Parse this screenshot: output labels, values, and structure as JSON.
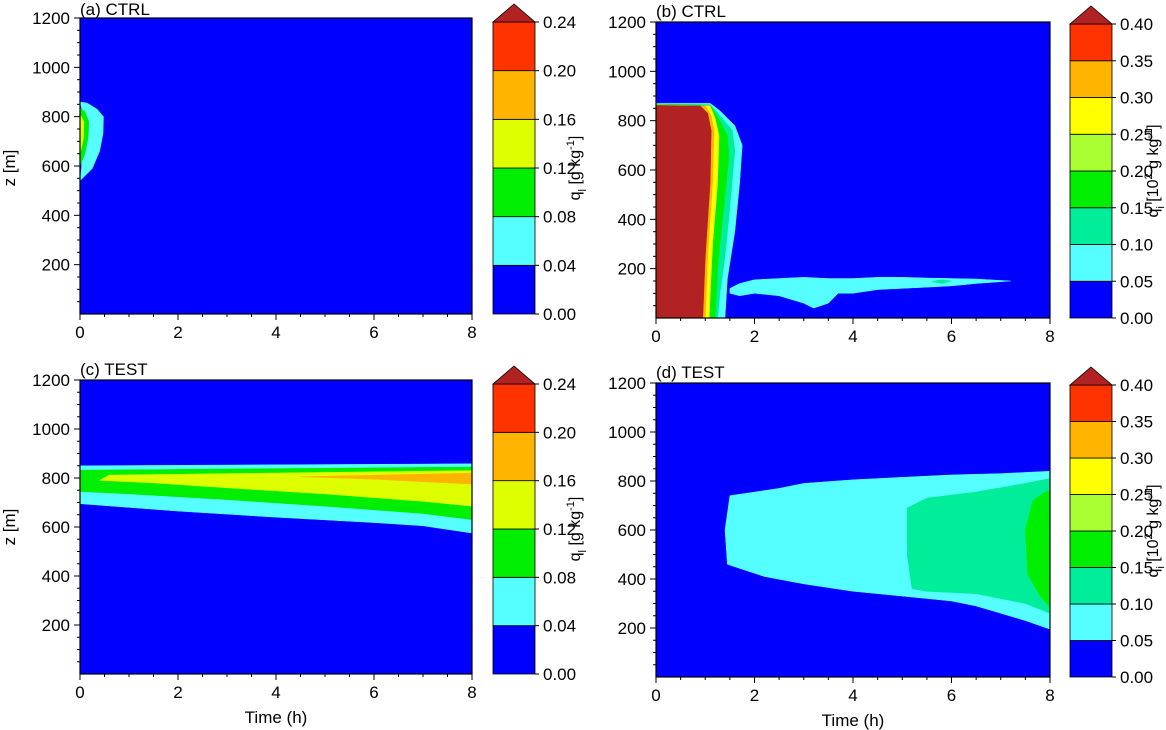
{
  "chart_data": [
    {
      "panel": "a",
      "type": "heatmap",
      "title": "(a) CTRL",
      "xlabel": "",
      "ylabel": "z [m]",
      "x_ticks": [
        "0",
        "2",
        "4",
        "6",
        "8"
      ],
      "y_ticks": [
        "200",
        "400",
        "600",
        "800",
        "1000",
        "1200"
      ],
      "xlim": [
        0,
        8
      ],
      "ylim": [
        0,
        1200
      ],
      "colorbar": {
        "label": "q_l [g kg^-1]",
        "tick_labels": [
          "0.00",
          "0.04",
          "0.08",
          "0.12",
          "0.16",
          "0.20",
          "0.24"
        ],
        "levels": [
          0,
          0.04,
          0.08,
          0.12,
          0.16,
          0.2,
          0.24
        ],
        "colors": [
          "#0000ff",
          "#55ffff",
          "#00ee00",
          "#ddff00",
          "#ffb400",
          "#ff3300"
        ],
        "extend_color": "#b22222"
      },
      "regions": [
        {
          "level_index": 1,
          "value_range": [
            0.04,
            0.08
          ],
          "points": [
            [
              0,
              540
            ],
            [
              0.03,
              590
            ],
            [
              0.05,
              700
            ],
            [
              0.04,
              830
            ],
            [
              0,
              855
            ],
            [
              0,
              860
            ],
            [
              0.15,
              855
            ],
            [
              0.35,
              830
            ],
            [
              0.48,
              800
            ],
            [
              0.47,
              730
            ],
            [
              0.4,
              660
            ],
            [
              0.25,
              590
            ]
          ]
        },
        {
          "level_index": 2,
          "value_range": [
            0.08,
            0.12
          ],
          "points": [
            [
              0,
              600
            ],
            [
              0.1,
              650
            ],
            [
              0.17,
              720
            ],
            [
              0.18,
              780
            ],
            [
              0.1,
              820
            ],
            [
              0,
              835
            ]
          ]
        },
        {
          "level_index": 3,
          "value_range": [
            0.12,
            0.16
          ],
          "points": [
            [
              0,
              650
            ],
            [
              0.07,
              710
            ],
            [
              0.08,
              780
            ],
            [
              0,
              810
            ]
          ]
        }
      ]
    },
    {
      "panel": "b",
      "type": "heatmap",
      "title": "(b) CTRL",
      "xlabel": "",
      "ylabel": "",
      "x_ticks": [
        "0",
        "2",
        "4",
        "6",
        "8"
      ],
      "y_ticks": [
        "200",
        "400",
        "600",
        "800",
        "1000",
        "1200"
      ],
      "xlim": [
        0,
        8
      ],
      "ylim": [
        0,
        1200
      ],
      "colorbar": {
        "label": "q_i [10^2 g kg^-1]",
        "tick_labels": [
          "0.00",
          "0.05",
          "0.10",
          "0.15",
          "0.20",
          "0.25",
          "0.30",
          "0.35",
          "0.40"
        ],
        "levels": [
          0,
          0.05,
          0.1,
          0.15,
          0.2,
          0.25,
          0.3,
          0.35,
          0.4
        ],
        "colors": [
          "#0000ff",
          "#55ffff",
          "#00ee99",
          "#00ee00",
          "#aaff33",
          "#ffff00",
          "#ffb400",
          "#ff3300"
        ],
        "extend_color": "#b22222"
      },
      "regions": [
        {
          "level_index": 1,
          "value_range": [
            0.05,
            0.1
          ],
          "points": [
            [
              0,
              0
            ],
            [
              0,
              870
            ],
            [
              1.1,
              870
            ],
            [
              1.3,
              840
            ],
            [
              1.6,
              780
            ],
            [
              1.75,
              700
            ],
            [
              1.7,
              550
            ],
            [
              1.6,
              350
            ],
            [
              1.45,
              160
            ],
            [
              1.4,
              0
            ]
          ]
        },
        {
          "level_index": 1,
          "value_range": [
            0.05,
            0.1
          ],
          "points": [
            [
              1.5,
              120
            ],
            [
              1.7,
              140
            ],
            [
              2.0,
              155
            ],
            [
              2.5,
              160
            ],
            [
              3.0,
              165
            ],
            [
              3.5,
              160
            ],
            [
              4.0,
              160
            ],
            [
              4.5,
              165
            ],
            [
              5.0,
              165
            ],
            [
              5.5,
              162
            ],
            [
              6.0,
              160
            ],
            [
              6.5,
              158
            ],
            [
              7.2,
              150
            ],
            [
              6.5,
              140
            ],
            [
              6.0,
              130
            ],
            [
              5.5,
              125
            ],
            [
              5.0,
              120
            ],
            [
              4.5,
              115
            ],
            [
              4.0,
              100
            ],
            [
              3.7,
              100
            ],
            [
              3.5,
              60
            ],
            [
              3.2,
              40
            ],
            [
              3.0,
              60
            ],
            [
              2.5,
              90
            ],
            [
              2.0,
              100
            ],
            [
              1.7,
              90
            ],
            [
              1.5,
              100
            ]
          ]
        },
        {
          "level_index": 2,
          "value_range": [
            0.1,
            0.15
          ],
          "points": [
            [
              0,
              0
            ],
            [
              0,
              868
            ],
            [
              1.1,
              865
            ],
            [
              1.3,
              820
            ],
            [
              1.55,
              760
            ],
            [
              1.6,
              680
            ],
            [
              1.5,
              450
            ],
            [
              1.4,
              250
            ],
            [
              1.3,
              100
            ],
            [
              1.25,
              0
            ]
          ]
        },
        {
          "level_index": 2,
          "value_range": [
            0.1,
            0.15
          ],
          "points": [
            [
              5.6,
              148
            ],
            [
              5.8,
              155
            ],
            [
              6.0,
              150
            ],
            [
              5.8,
              140
            ]
          ]
        },
        {
          "level_index": 3,
          "value_range": [
            0.15,
            0.2
          ],
          "points": [
            [
              0,
              0
            ],
            [
              0,
              866
            ],
            [
              1.1,
              862
            ],
            [
              1.25,
              815
            ],
            [
              1.45,
              740
            ],
            [
              1.48,
              650
            ],
            [
              1.35,
              400
            ],
            [
              1.25,
              200
            ],
            [
              1.2,
              0
            ]
          ]
        },
        {
          "level_index": 5,
          "value_range": [
            0.25,
            0.3
          ],
          "points": [
            [
              0,
              0
            ],
            [
              0,
              864
            ],
            [
              1.1,
              860
            ],
            [
              1.2,
              810
            ],
            [
              1.28,
              740
            ],
            [
              1.25,
              550
            ],
            [
              1.15,
              300
            ],
            [
              1.1,
              100
            ],
            [
              1.08,
              0
            ]
          ]
        },
        {
          "level_index": 6,
          "value_range": [
            0.3,
            0.35
          ],
          "points": [
            [
              0,
              0
            ],
            [
              0,
              863
            ],
            [
              1.0,
              860
            ],
            [
              1.12,
              820
            ],
            [
              1.18,
              760
            ],
            [
              1.15,
              550
            ],
            [
              1.05,
              250
            ],
            [
              1.0,
              0
            ]
          ]
        },
        {
          "level_index": 8,
          "value_range": [
            0.4,
            null
          ],
          "points": [
            [
              0,
              0
            ],
            [
              0,
              862
            ],
            [
              0.9,
              860
            ],
            [
              1.05,
              830
            ],
            [
              1.12,
              760
            ],
            [
              1.1,
              550
            ],
            [
              1.0,
              250
            ],
            [
              0.95,
              0
            ]
          ]
        }
      ]
    },
    {
      "panel": "c",
      "type": "heatmap",
      "title": "(c) TEST",
      "xlabel": "Time (h)",
      "ylabel": "z [m]",
      "x_ticks": [
        "0",
        "2",
        "4",
        "6",
        "8"
      ],
      "y_ticks": [
        "200",
        "400",
        "600",
        "800",
        "1000",
        "1200"
      ],
      "xlim": [
        0,
        8
      ],
      "ylim": [
        0,
        1200
      ],
      "colorbar": {
        "label": "q_l [g kg^-1]",
        "tick_labels": [
          "0.00",
          "0.04",
          "0.08",
          "0.12",
          "0.16",
          "0.20",
          "0.24"
        ],
        "levels": [
          0,
          0.04,
          0.08,
          0.12,
          0.16,
          0.2,
          0.24
        ],
        "colors": [
          "#0000ff",
          "#55ffff",
          "#00ee00",
          "#ddff00",
          "#ffb400",
          "#ff3300"
        ],
        "extend_color": "#b22222"
      },
      "regions": [
        {
          "level_index": 1,
          "value_range": [
            0.04,
            0.08
          ],
          "points": [
            [
              0,
              695
            ],
            [
              0,
              850
            ],
            [
              8,
              858
            ],
            [
              8,
              575
            ],
            [
              7,
              605
            ],
            [
              6,
              618
            ],
            [
              4,
              640
            ],
            [
              2,
              665
            ]
          ]
        },
        {
          "level_index": 2,
          "value_range": [
            0.08,
            0.12
          ],
          "points": [
            [
              0,
              745
            ],
            [
              0,
              832
            ],
            [
              8,
              845
            ],
            [
              8,
              630
            ],
            [
              7,
              655
            ],
            [
              5,
              685
            ],
            [
              3,
              712
            ],
            [
              1,
              735
            ]
          ]
        },
        {
          "level_index": 3,
          "value_range": [
            0.12,
            0.16
          ],
          "points": [
            [
              0.4,
              790
            ],
            [
              0.6,
              812
            ],
            [
              8,
              830
            ],
            [
              8,
              685
            ],
            [
              7,
              705
            ],
            [
              5,
              735
            ],
            [
              3,
              760
            ],
            [
              1.5,
              780
            ]
          ]
        },
        {
          "level_index": 4,
          "value_range": [
            0.16,
            0.2
          ],
          "points": [
            [
              4.5,
              805
            ],
            [
              8,
              820
            ],
            [
              8,
              775
            ],
            [
              7,
              785
            ],
            [
              6,
              795
            ]
          ]
        }
      ]
    },
    {
      "panel": "d",
      "type": "heatmap",
      "title": "(d) TEST",
      "xlabel": "Time (h)",
      "ylabel": "",
      "x_ticks": [
        "0",
        "2",
        "4",
        "6",
        "8"
      ],
      "y_ticks": [
        "200",
        "400",
        "600",
        "800",
        "1000",
        "1200"
      ],
      "xlim": [
        0,
        8
      ],
      "ylim": [
        0,
        1200
      ],
      "colorbar": {
        "label": "q_i [10^2 g kg^-1]",
        "tick_labels": [
          "0.00",
          "0.05",
          "0.10",
          "0.15",
          "0.20",
          "0.25",
          "0.30",
          "0.35",
          "0.40"
        ],
        "levels": [
          0,
          0.05,
          0.1,
          0.15,
          0.2,
          0.25,
          0.3,
          0.35,
          0.4
        ],
        "colors": [
          "#0000ff",
          "#55ffff",
          "#00ee99",
          "#00ee00",
          "#aaff33",
          "#ffff00",
          "#ffb400",
          "#ff3300"
        ],
        "extend_color": "#b22222"
      },
      "regions": [
        {
          "level_index": 1,
          "value_range": [
            0.05,
            0.1
          ],
          "points": [
            [
              1.45,
              460
            ],
            [
              1.4,
              600
            ],
            [
              1.5,
              740
            ],
            [
              2.5,
              770
            ],
            [
              3.0,
              790
            ],
            [
              4,
              805
            ],
            [
              5,
              815
            ],
            [
              6,
              825
            ],
            [
              7,
              830
            ],
            [
              8,
              840
            ],
            [
              8,
              195
            ],
            [
              7.5,
              230
            ],
            [
              7,
              260
            ],
            [
              6.5,
              290
            ],
            [
              6,
              310
            ],
            [
              5,
              330
            ],
            [
              4,
              350
            ],
            [
              3,
              380
            ],
            [
              2.2,
              410
            ],
            [
              1.6,
              450
            ]
          ]
        },
        {
          "level_index": 2,
          "value_range": [
            0.1,
            0.15
          ],
          "points": [
            [
              5.1,
              690
            ],
            [
              5.5,
              730
            ],
            [
              6.5,
              755
            ],
            [
              7.5,
              790
            ],
            [
              8,
              810
            ],
            [
              8,
              260
            ],
            [
              7.5,
              300
            ],
            [
              7,
              320
            ],
            [
              6.5,
              340
            ],
            [
              5.5,
              350
            ],
            [
              5.2,
              360
            ],
            [
              5.1,
              500
            ]
          ]
        },
        {
          "level_index": 3,
          "value_range": [
            0.15,
            0.2
          ],
          "points": [
            [
              7.55,
              420
            ],
            [
              7.5,
              600
            ],
            [
              7.65,
              720
            ],
            [
              7.9,
              755
            ],
            [
              8,
              760
            ],
            [
              8,
              285
            ],
            [
              7.8,
              330
            ]
          ]
        }
      ]
    }
  ]
}
